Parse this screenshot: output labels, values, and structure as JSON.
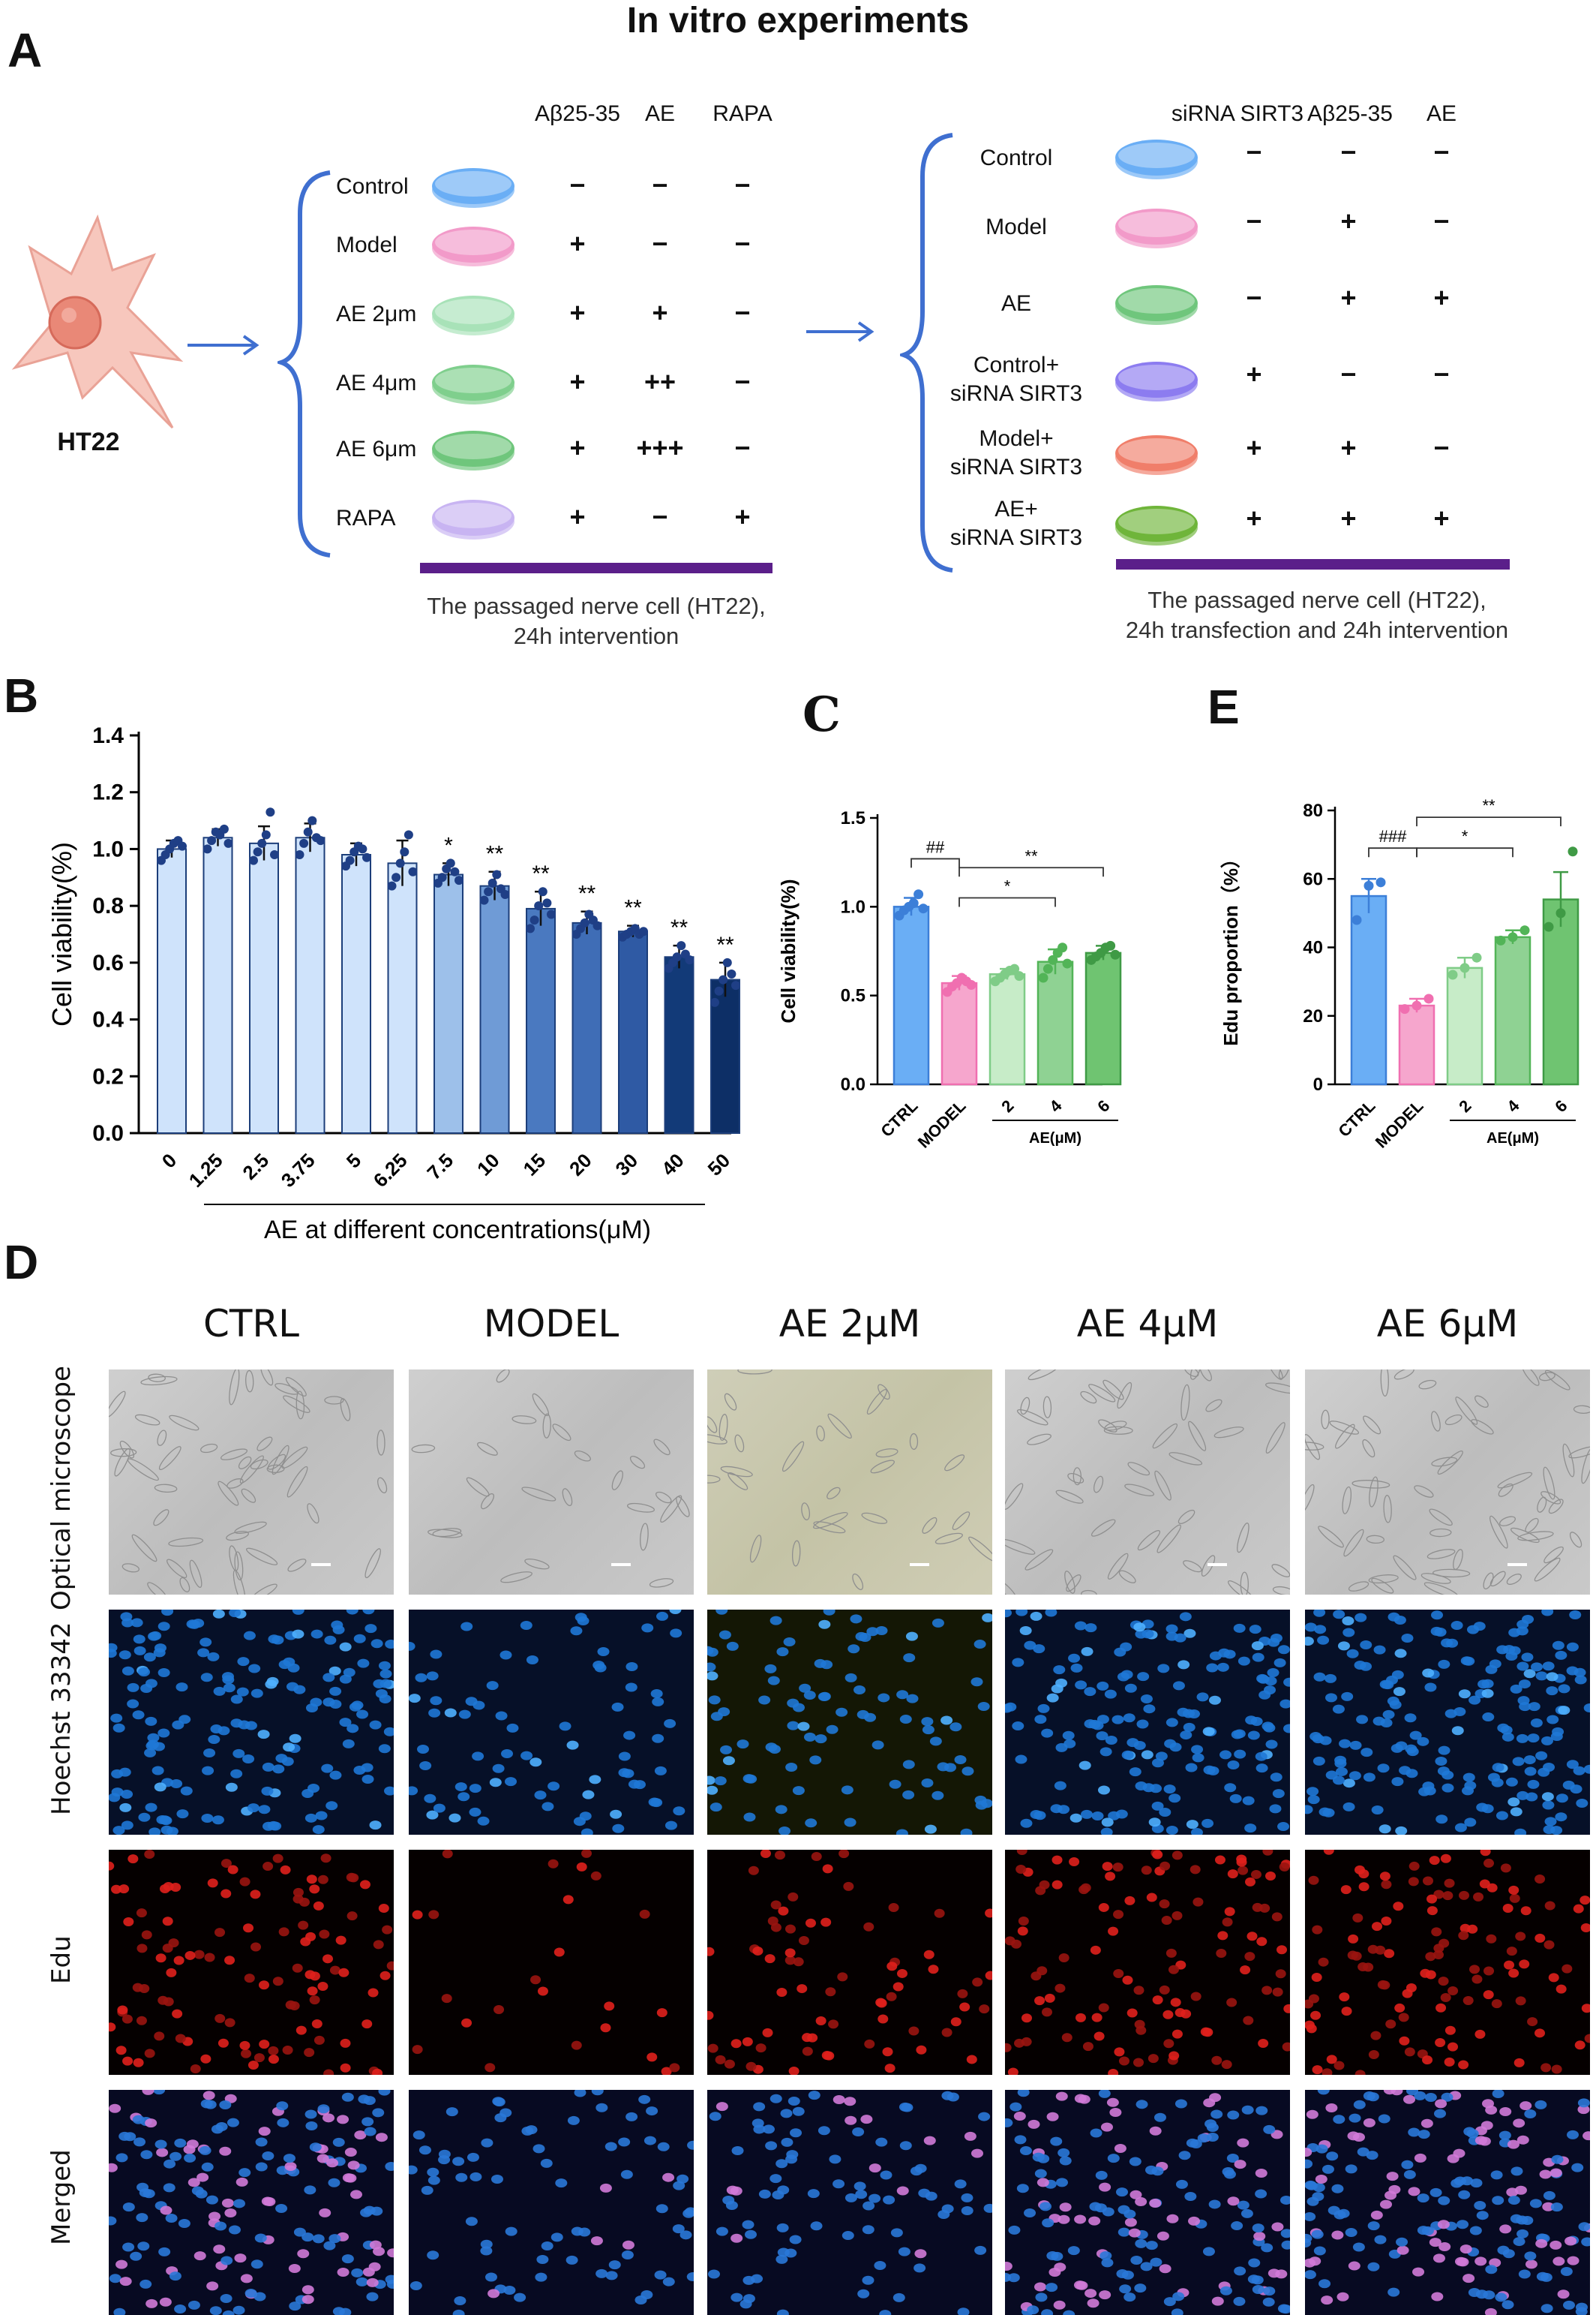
{
  "panel_a": {
    "letter": "A",
    "title": "In vitro experiments",
    "cell_label": "HT22",
    "left_headers": [
      "Aβ25-35",
      "AE",
      "RAPA"
    ],
    "left_rows": [
      {
        "label": "Control",
        "color": "#6aaef5",
        "signs": [
          "−",
          "−",
          "−"
        ]
      },
      {
        "label": "Model",
        "color": "#f29ac9",
        "signs": [
          "+",
          "−",
          "−"
        ]
      },
      {
        "label": "AE 2μm",
        "color": "#a8e2b8",
        "signs": [
          "+",
          "+",
          "−"
        ]
      },
      {
        "label": "AE 4μm",
        "color": "#7fcf8d",
        "signs": [
          "+",
          "++",
          "−"
        ]
      },
      {
        "label": "AE 6μm",
        "color": "#6fc67c",
        "signs": [
          "+",
          "+++",
          "−"
        ]
      },
      {
        "label": "RAPA",
        "color": "#c8b4f2",
        "signs": [
          "+",
          "−",
          "+"
        ]
      }
    ],
    "left_caption_1": "The passaged nerve cell (HT22),",
    "left_caption_2": "24h intervention",
    "right_headers": [
      "siRNA SIRT3",
      "Aβ25-35",
      "AE"
    ],
    "right_rows": [
      {
        "label": [
          "Control"
        ],
        "color": "#6aaef5",
        "signs": [
          "−",
          "−",
          "−"
        ]
      },
      {
        "label": [
          "Model"
        ],
        "color": "#f29ac9",
        "signs": [
          "−",
          "+",
          "−"
        ]
      },
      {
        "label": [
          "AE"
        ],
        "color": "#6fc67c",
        "signs": [
          "−",
          "+",
          "+"
        ]
      },
      {
        "label": [
          "Control+",
          "siRNA SIRT3"
        ],
        "color": "#8c7cf0",
        "signs": [
          "+",
          "−",
          "−"
        ]
      },
      {
        "label": [
          "Model+",
          "siRNA SIRT3"
        ],
        "color": "#f07e6a",
        "signs": [
          "+",
          "+",
          "−"
        ]
      },
      {
        "label": [
          "AE+",
          "siRNA SIRT3"
        ],
        "color": "#6fb53a",
        "signs": [
          "+",
          "+",
          "+"
        ]
      }
    ],
    "right_caption_1": "The passaged nerve cell (HT22),",
    "right_caption_2": "24h transfection and 24h intervention"
  },
  "panel_b": {
    "letter": "B"
  },
  "panel_c": {
    "letter": "C"
  },
  "panel_e": {
    "letter": "E"
  },
  "panel_d": {
    "letter": "D",
    "columns": [
      "CTRL",
      "MODEL",
      "AE 2μM",
      "AE 4μM",
      "AE 6μM"
    ],
    "rows": [
      "Optical microscope",
      "Hoechst 33342",
      "Edu",
      "Merged"
    ]
  },
  "chart_data": [
    {
      "id": "B",
      "type": "bar",
      "ylabel": "Cell viability(%)",
      "xlabel": "AE at different concentrations(μM)",
      "ylim": [
        0,
        1.4
      ],
      "yticks": [
        "0.0",
        "0.2",
        "0.4",
        "0.6",
        "0.8",
        "1.0",
        "1.2",
        "1.4"
      ],
      "categories": [
        "0",
        "1.25",
        "2.5",
        "3.75",
        "5",
        "6.25",
        "7.5",
        "10",
        "15",
        "20",
        "30",
        "40",
        "50"
      ],
      "values": [
        1.0,
        1.04,
        1.02,
        1.04,
        0.98,
        0.95,
        0.91,
        0.87,
        0.79,
        0.74,
        0.71,
        0.62,
        0.54
      ],
      "errors": [
        0.03,
        0.03,
        0.06,
        0.05,
        0.04,
        0.08,
        0.04,
        0.05,
        0.06,
        0.04,
        0.02,
        0.04,
        0.06
      ],
      "colors": [
        "#cfe3fb",
        "#cfe3fb",
        "#cfe3fb",
        "#cfe3fb",
        "#cfe3fb",
        "#cfe3fb",
        "#9dc0ea",
        "#6f9bd6",
        "#4a79c0",
        "#3f6db6",
        "#2f5aa4",
        "#123a78",
        "#0d2f66"
      ],
      "points": [
        [
          0.96,
          0.98,
          1.0,
          1.02,
          1.03,
          1.01
        ],
        [
          1.0,
          1.03,
          1.06,
          1.05,
          1.07,
          1.02
        ],
        [
          0.96,
          0.99,
          1.02,
          1.05,
          1.13,
          0.98
        ],
        [
          0.98,
          1.02,
          1.06,
          1.1,
          1.04,
          1.03
        ],
        [
          0.94,
          0.96,
          0.99,
          1.01,
          1.0,
          0.97
        ],
        [
          0.87,
          0.9,
          0.95,
          0.99,
          1.05,
          0.92
        ],
        [
          0.88,
          0.9,
          0.93,
          0.95,
          0.92,
          0.89
        ],
        [
          0.82,
          0.85,
          0.88,
          0.91,
          0.86,
          0.84
        ],
        [
          0.72,
          0.75,
          0.8,
          0.85,
          0.81,
          0.77
        ],
        [
          0.7,
          0.72,
          0.74,
          0.77,
          0.75,
          0.73
        ],
        [
          0.69,
          0.7,
          0.71,
          0.72,
          0.7,
          0.71
        ],
        [
          0.58,
          0.6,
          0.62,
          0.66,
          0.63,
          0.61
        ],
        [
          0.46,
          0.5,
          0.54,
          0.6,
          0.56,
          0.52
        ]
      ],
      "annotations": [
        "",
        "",
        "",
        "",
        "",
        "",
        "*",
        "**",
        "**",
        "**",
        "**",
        "**",
        "**"
      ]
    },
    {
      "id": "C",
      "type": "bar",
      "ylabel": "Cell viability(%)",
      "group_label": "AE(μM)",
      "ylim": [
        0,
        1.5
      ],
      "yticks": [
        "0.0",
        "0.5",
        "1.0",
        "1.5"
      ],
      "categories": [
        "CTRL",
        "MODEL",
        "2",
        "4",
        "6"
      ],
      "values": [
        1.0,
        0.57,
        0.62,
        0.69,
        0.74
      ],
      "errors": [
        0.05,
        0.04,
        0.03,
        0.07,
        0.04
      ],
      "colors": [
        "#6aaef5",
        "#f6a6cd",
        "#c7ecc8",
        "#8fd293",
        "#6fc471"
      ],
      "point_colors": [
        "#3c7fd8",
        "#f06fb0",
        "#7fcc87",
        "#52b457",
        "#3f9a45"
      ],
      "points": [
        [
          0.95,
          0.98,
          1.0,
          1.02,
          1.07,
          0.99
        ],
        [
          0.52,
          0.55,
          0.57,
          0.6,
          0.58,
          0.56
        ],
        [
          0.58,
          0.6,
          0.62,
          0.64,
          0.65,
          0.61
        ],
        [
          0.6,
          0.65,
          0.7,
          0.74,
          0.77,
          0.68
        ],
        [
          0.7,
          0.72,
          0.74,
          0.77,
          0.78,
          0.73
        ]
      ],
      "brackets": [
        {
          "from": 0,
          "to": 1,
          "label": "##",
          "level": 1.27
        },
        {
          "from": 1,
          "to": 4,
          "label": "**",
          "level": 1.22
        },
        {
          "from": 1,
          "to": 3,
          "label": "*",
          "level": 1.05
        }
      ]
    },
    {
      "id": "E",
      "type": "bar",
      "ylabel": "Edu proportion（%）",
      "group_label": "AE(μM)",
      "ylim": [
        0,
        80
      ],
      "yticks": [
        "0",
        "20",
        "40",
        "60",
        "80"
      ],
      "categories": [
        "CTRL",
        "MODEL",
        "2",
        "4",
        "6"
      ],
      "values": [
        55,
        23,
        34,
        43,
        54
      ],
      "errors": [
        5,
        2,
        3,
        2,
        8
      ],
      "colors": [
        "#6aaef5",
        "#f6a6cd",
        "#c7ecc8",
        "#8fd293",
        "#6fc471"
      ],
      "point_colors": [
        "#3c7fd8",
        "#f06fb0",
        "#7fcc87",
        "#52b457",
        "#3f9a45"
      ],
      "points": [
        [
          48,
          58,
          59
        ],
        [
          22,
          23,
          25
        ],
        [
          32,
          34,
          37
        ],
        [
          42,
          43,
          45
        ],
        [
          46,
          50,
          68
        ]
      ],
      "brackets": [
        {
          "from": 0,
          "to": 1,
          "label": "###",
          "level": 69
        },
        {
          "from": 1,
          "to": 4,
          "label": "**",
          "level": 78
        },
        {
          "from": 1,
          "to": 3,
          "label": "*",
          "level": 69
        }
      ]
    }
  ]
}
